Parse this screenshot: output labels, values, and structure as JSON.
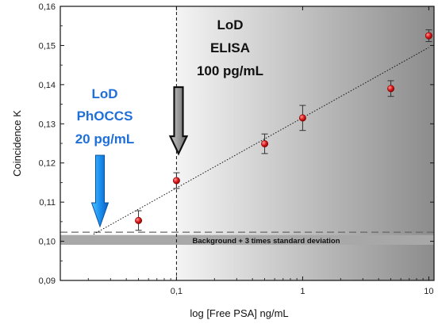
{
  "chart_data": {
    "type": "scatter",
    "title": "",
    "xlabel": "log [Free PSA] ng/mL",
    "ylabel": "Coincidence K",
    "xscale": "log",
    "xlim": [
      0.012,
      11
    ],
    "ylim": [
      0.09,
      0.16
    ],
    "x_ticks": [
      {
        "value": 0.1,
        "label": "0,1"
      },
      {
        "value": 1,
        "label": "1"
      },
      {
        "value": 10,
        "label": "10"
      }
    ],
    "y_ticks": [
      {
        "value": 0.09,
        "label": "0,09"
      },
      {
        "value": 0.1,
        "label": "0,10"
      },
      {
        "value": 0.11,
        "label": "0,11"
      },
      {
        "value": 0.12,
        "label": "0,12"
      },
      {
        "value": 0.13,
        "label": "0,13"
      },
      {
        "value": 0.14,
        "label": "0,14"
      },
      {
        "value": 0.15,
        "label": "0,15"
      },
      {
        "value": 0.16,
        "label": "0,16"
      }
    ],
    "series": [
      {
        "points": [
          {
            "x": 0.05,
            "y": 0.1053,
            "err": 0.0025
          },
          {
            "x": 0.1,
            "y": 0.1155,
            "err": 0.002
          },
          {
            "x": 0.5,
            "y": 0.1249,
            "err": 0.0025
          },
          {
            "x": 1,
            "y": 0.1315,
            "err": 0.0032
          },
          {
            "x": 5,
            "y": 0.139,
            "err": 0.002
          },
          {
            "x": 10,
            "y": 0.1525,
            "err": 0.0015
          }
        ],
        "color": "#d81e1e"
      }
    ],
    "fit_line": {
      "x": [
        0.022,
        10
      ],
      "y": [
        0.1018,
        0.1495
      ],
      "style": "dotted"
    },
    "background_band": {
      "y_low": 0.0991,
      "y_high": 0.1016,
      "y_line": 0.1015,
      "label": "Background + 3 times standard deviation"
    },
    "vertical_marker": {
      "x": 0.1,
      "style": "dashed"
    },
    "shaded_region": {
      "x_from": 0.1,
      "x_to": 11
    },
    "annotations": {
      "phoccs_lines": [
        "LoD",
        "PhOCCS",
        "20 pg/mL"
      ],
      "elisa_lines": [
        "LoD",
        "ELISA",
        "100 pg/mL"
      ]
    },
    "colors": {
      "marker": "#d81e1e",
      "phoccs_arrow": "#1a8ff0",
      "elisa_arrow": "#888888",
      "band": "#a8a8a8"
    },
    "grid": false,
    "legend": "none"
  }
}
